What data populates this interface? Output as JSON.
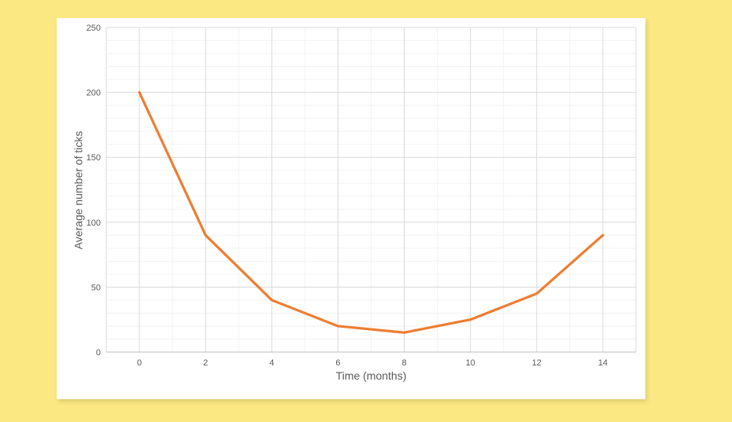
{
  "page": {
    "background_color": "#FBE882"
  },
  "card": {
    "background_color": "#FFFFFF"
  },
  "chart_data": {
    "type": "line",
    "title": "",
    "x": [
      0,
      2,
      4,
      6,
      8,
      10,
      12,
      14
    ],
    "series": [
      {
        "name": "Average number of ticks",
        "values": [
          200,
          90,
          40,
          20,
          15,
          25,
          45,
          90
        ],
        "color": "#ED7D31",
        "stroke_width": 3.2
      }
    ],
    "xlabel": "Time (months)",
    "ylabel": "Average number of ticks",
    "xlim": [
      -1,
      15
    ],
    "ylim": [
      0,
      250
    ],
    "xticks": [
      0,
      2,
      4,
      6,
      8,
      10,
      12,
      14
    ],
    "yticks": [
      0,
      50,
      100,
      150,
      200,
      250
    ],
    "x_minor_step": 1,
    "y_minor_step": 10,
    "grid": {
      "major_on": true,
      "minor_on": true,
      "major_color": "#D9D9D9",
      "minor_color": "#F2F2F2",
      "axis_line_color": "#BFBFBF"
    },
    "tick_label_color": "#595959",
    "axis_title_color": "#595959",
    "legend_position": "none"
  }
}
